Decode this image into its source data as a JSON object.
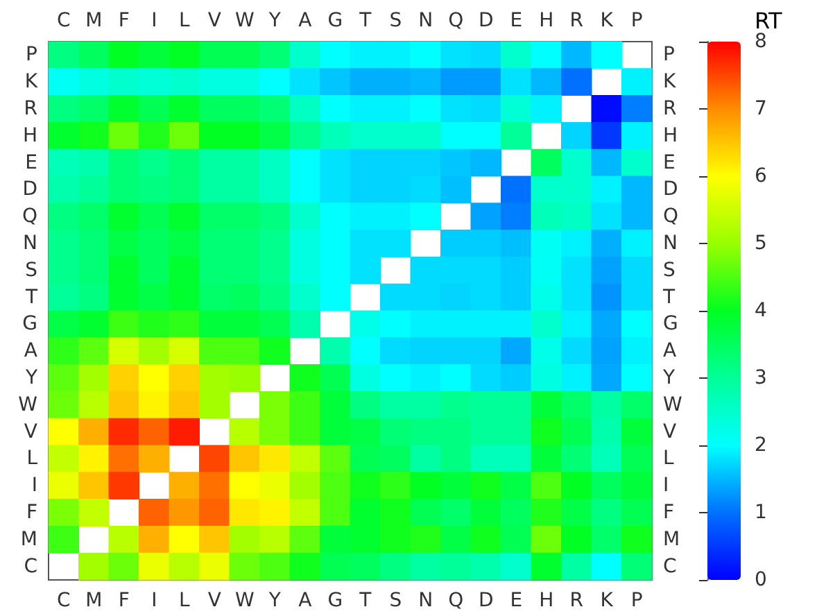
{
  "chart_data": {
    "type": "heatmap",
    "clabel": "RT",
    "clim": [
      0,
      8
    ],
    "cticks": [
      0,
      1,
      2,
      3,
      4,
      5,
      6,
      7,
      8
    ],
    "categories": [
      "C",
      "M",
      "F",
      "I",
      "L",
      "V",
      "W",
      "Y",
      "A",
      "G",
      "T",
      "S",
      "N",
      "Q",
      "D",
      "E",
      "H",
      "R",
      "K",
      "P"
    ],
    "y_categories": [
      "P",
      "K",
      "R",
      "H",
      "E",
      "D",
      "Q",
      "N",
      "S",
      "T",
      "G",
      "A",
      "Y",
      "W",
      "V",
      "L",
      "I",
      "F",
      "M",
      "C"
    ],
    "y2_categories": [
      "P",
      "K",
      "R",
      "H",
      "E",
      "D",
      "Q",
      "N",
      "S",
      "T",
      "G",
      "A",
      "Y",
      "W",
      "V",
      "L",
      "I",
      "F",
      "M",
      "C"
    ],
    "cells": [
      [
        3.2,
        3.5,
        4.0,
        3.8,
        4.0,
        3.6,
        3.6,
        3.3,
        2.5,
        2.0,
        1.9,
        1.9,
        2.0,
        1.8,
        1.75,
        2.5,
        2.0,
        1.5,
        2.0,
        null
      ],
      [
        2.1,
        2.3,
        2.5,
        2.4,
        2.5,
        2.3,
        2.3,
        2.0,
        1.8,
        1.6,
        1.45,
        1.45,
        1.5,
        1.3,
        1.3,
        1.8,
        1.5,
        1.0,
        null,
        1.9
      ],
      [
        3.2,
        3.4,
        3.9,
        3.6,
        3.9,
        3.5,
        3.5,
        3.3,
        2.6,
        2.0,
        1.9,
        1.9,
        2.0,
        1.8,
        1.75,
        2.4,
        1.9,
        null,
        0.1,
        1.1
      ],
      [
        3.9,
        4.1,
        4.7,
        4.2,
        4.7,
        4.0,
        4.0,
        3.7,
        3.1,
        2.7,
        2.5,
        2.5,
        2.5,
        2.0,
        2.0,
        3.0,
        null,
        1.7,
        0.5,
        1.9
      ],
      [
        2.7,
        2.8,
        3.3,
        3.1,
        3.3,
        2.9,
        2.9,
        2.6,
        2.0,
        1.8,
        1.7,
        1.7,
        1.7,
        1.6,
        1.5,
        null,
        3.5,
        2.5,
        1.5,
        2.5
      ],
      [
        2.8,
        3.0,
        3.3,
        3.2,
        3.3,
        2.9,
        2.9,
        2.6,
        2.0,
        1.8,
        1.7,
        1.7,
        1.75,
        1.55,
        null,
        1.0,
        2.5,
        2.5,
        1.9,
        1.5
      ],
      [
        3.2,
        3.4,
        3.9,
        3.6,
        3.9,
        3.4,
        3.4,
        3.2,
        2.5,
        2.0,
        1.9,
        1.9,
        2.0,
        null,
        1.35,
        1.1,
        2.7,
        2.6,
        1.8,
        1.5
      ],
      [
        3.1,
        3.3,
        3.7,
        3.5,
        3.7,
        3.3,
        3.3,
        3.1,
        2.3,
        2.0,
        1.8,
        1.8,
        null,
        1.65,
        1.65,
        1.55,
        2.1,
        1.9,
        1.45,
        1.9
      ],
      [
        3.1,
        3.3,
        3.9,
        3.5,
        3.9,
        3.3,
        3.3,
        3.1,
        2.3,
        2.0,
        1.8,
        null,
        1.75,
        1.75,
        1.75,
        1.65,
        2.1,
        1.8,
        1.35,
        1.75
      ],
      [
        3.0,
        3.2,
        3.9,
        3.7,
        3.9,
        3.4,
        3.5,
        3.2,
        2.5,
        2.0,
        null,
        1.75,
        1.75,
        1.7,
        1.75,
        1.65,
        2.2,
        1.8,
        1.25,
        1.75
      ],
      [
        3.7,
        3.9,
        4.4,
        4.2,
        4.3,
        3.8,
        3.8,
        3.6,
        2.8,
        null,
        2.2,
        2.0,
        1.9,
        1.9,
        1.9,
        1.9,
        2.5,
        1.9,
        1.4,
        2.0
      ],
      [
        4.3,
        4.6,
        5.6,
        5.1,
        5.6,
        4.5,
        4.5,
        4.1,
        null,
        2.8,
        2.0,
        1.75,
        1.7,
        1.7,
        1.7,
        1.4,
        2.2,
        1.75,
        1.35,
        1.9
      ],
      [
        4.6,
        5.1,
        6.4,
        6.0,
        6.4,
        5.1,
        5.0,
        null,
        4.1,
        3.6,
        2.3,
        2.0,
        1.9,
        2.0,
        1.75,
        1.65,
        2.3,
        1.9,
        1.4,
        2.0
      ],
      [
        4.7,
        5.3,
        6.5,
        6.1,
        6.5,
        5.1,
        null,
        4.8,
        4.4,
        3.8,
        3.2,
        2.9,
        2.9,
        3.1,
        3.0,
        3.0,
        3.8,
        3.4,
        2.9,
        3.4
      ],
      [
        6.0,
        6.7,
        7.7,
        7.3,
        7.8,
        null,
        5.3,
        4.8,
        4.4,
        3.8,
        3.7,
        3.3,
        3.2,
        3.2,
        3.0,
        3.0,
        4.1,
        3.6,
        2.8,
        3.8
      ],
      [
        5.4,
        6.1,
        7.2,
        6.7,
        null,
        7.5,
        6.5,
        6.2,
        5.4,
        4.6,
        3.6,
        3.5,
        2.9,
        3.2,
        2.7,
        2.7,
        3.8,
        3.3,
        2.7,
        3.6
      ],
      [
        5.8,
        6.5,
        7.6,
        null,
        6.7,
        7.2,
        6.0,
        5.8,
        5.1,
        4.5,
        4.1,
        4.3,
        4.0,
        3.8,
        4.1,
        3.7,
        4.5,
        4.0,
        3.5,
        3.8
      ],
      [
        4.8,
        5.4,
        null,
        7.3,
        6.9,
        7.3,
        6.2,
        6.1,
        5.4,
        4.5,
        3.9,
        4.1,
        3.6,
        3.4,
        3.8,
        3.5,
        4.2,
        3.7,
        3.2,
        3.6
      ],
      [
        4.4,
        null,
        5.3,
        6.7,
        6.0,
        6.5,
        5.1,
        5.3,
        4.6,
        3.8,
        3.9,
        4.1,
        4.2,
        3.7,
        4.1,
        3.6,
        4.7,
        4.0,
        3.4,
        4.1
      ],
      [
        null,
        5.1,
        4.7,
        5.8,
        5.3,
        5.8,
        4.7,
        4.5,
        4.1,
        3.6,
        3.5,
        3.2,
        2.9,
        3.0,
        2.8,
        2.5,
        3.9,
        2.9,
        2.0,
        3.3
      ]
    ]
  }
}
